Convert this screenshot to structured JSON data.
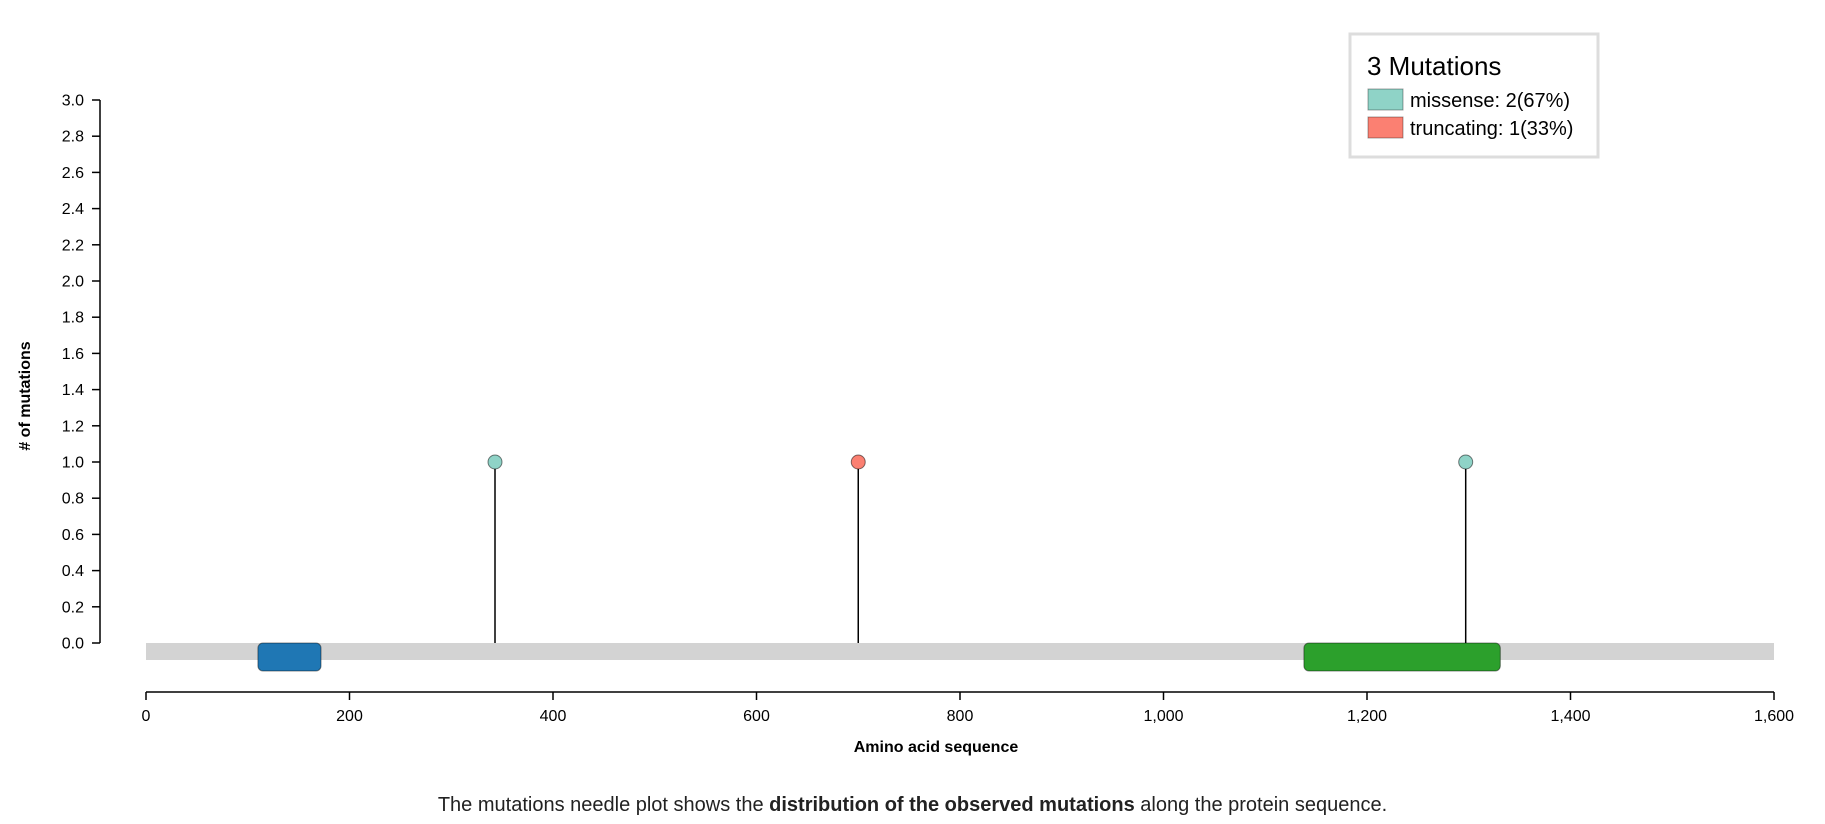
{
  "chart_data": {
    "type": "scatter",
    "subtype": "needle-plot",
    "xlabel": "Amino acid sequence",
    "ylabel": "# of mutations",
    "xlim": [
      0,
      1600
    ],
    "ylim": [
      0,
      3.0
    ],
    "x_ticks": [
      0,
      200,
      400,
      600,
      800,
      1000,
      1200,
      1400,
      1600
    ],
    "x_tick_labels": [
      "0",
      "200",
      "400",
      "600",
      "800",
      "1,000",
      "1,200",
      "1,400",
      "1,600"
    ],
    "y_ticks": [
      0.0,
      0.2,
      0.4,
      0.6,
      0.8,
      1.0,
      1.2,
      1.4,
      1.6,
      1.8,
      2.0,
      2.2,
      2.4,
      2.6,
      2.8,
      3.0
    ],
    "y_tick_labels": [
      "0.0",
      "0.2",
      "0.4",
      "0.6",
      "0.8",
      "1.0",
      "1.2",
      "1.4",
      "1.6",
      "1.8",
      "2.0",
      "2.2",
      "2.4",
      "2.6",
      "2.8",
      "3.0"
    ],
    "grid": false,
    "protein_length": 1600,
    "mutations": [
      {
        "position": 343,
        "count": 1,
        "category": "missense"
      },
      {
        "position": 700,
        "count": 1,
        "category": "truncating"
      },
      {
        "position": 1297,
        "count": 1,
        "category": "missense"
      }
    ],
    "domains": [
      {
        "start": 110,
        "end": 172,
        "color": "#1f77b4"
      },
      {
        "start": 1138,
        "end": 1331,
        "color": "#2ca02c"
      }
    ],
    "legend": {
      "position": "top-right",
      "title": "3 Mutations",
      "entries": [
        {
          "label": "missense: 2(67%)",
          "color": "#8fd3c7"
        },
        {
          "label": "truncating: 1(33%)",
          "color": "#fb8072"
        }
      ]
    }
  },
  "colors": {
    "missense": "#8fd3c7",
    "truncating": "#fb8072",
    "backbone": "#d3d3d3"
  },
  "caption": {
    "prefix": "The mutations needle plot shows the ",
    "bold": "distribution of the observed mutations",
    "suffix": " along the protein sequence."
  }
}
